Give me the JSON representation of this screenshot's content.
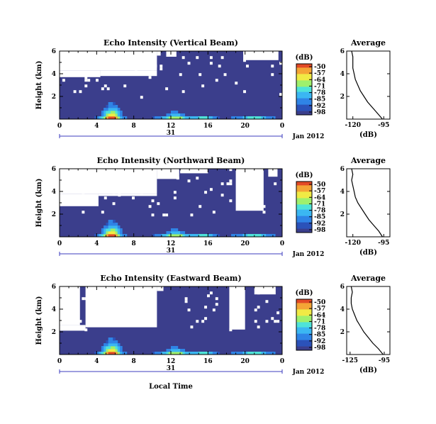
{
  "colors": {
    "background": "#3b3e8c",
    "gap": "#ffffff",
    "colorbar": [
      "#3b3e8c",
      "#2b52b9",
      "#2f84e6",
      "#3bb7f2",
      "#4fe3d9",
      "#9ff06d",
      "#f0ea45",
      "#f4a536",
      "#e24a26"
    ]
  },
  "colorbar": {
    "unit": "(dB)",
    "ticks": [
      "-50",
      "-57",
      "-64",
      "-71",
      "-78",
      "-85",
      "-92",
      "-98"
    ]
  },
  "xaxis": {
    "ticks": [
      "0",
      "4",
      "8",
      "12",
      "16",
      "20",
      "0"
    ],
    "day_label": "31",
    "month_label": "Jan 2012",
    "xlabel": "Local Time",
    "range": [
      0,
      24
    ]
  },
  "chart_data": [
    {
      "type": "heatmap",
      "title": "Echo Intensity (Vertical Beam)",
      "ylabel": "Height (km)",
      "yticks": [
        "6",
        "4",
        "2"
      ],
      "ylim": [
        0,
        6
      ],
      "profile": {
        "title": "Average",
        "xlabel": "(dB)",
        "xticks": [
          "-120",
          "-95"
        ],
        "yticks": [
          "6",
          "4",
          "2"
        ],
        "height_km": [
          0.0,
          0.5,
          1.0,
          1.5,
          2.0,
          2.5,
          3.0,
          3.5,
          4.0,
          4.5,
          5.0,
          5.5,
          6.0
        ],
        "value_db": [
          -96,
          -100,
          -104,
          -108,
          -111,
          -114,
          -116,
          -118,
          -119,
          -120,
          -120,
          -120,
          -121
        ]
      }
    },
    {
      "type": "heatmap",
      "title": "Echo Intensity (Northward Beam)",
      "ylabel": "Height (km)",
      "yticks": [
        "6",
        "4",
        "2"
      ],
      "ylim": [
        0,
        6
      ],
      "profile": {
        "title": "Average",
        "xlabel": "(dB)",
        "xticks": [
          "-120",
          "-95"
        ],
        "yticks": [
          "6",
          "4",
          "2"
        ],
        "height_km": [
          0.0,
          0.5,
          1.0,
          1.5,
          2.0,
          2.5,
          3.0,
          3.5,
          4.0,
          4.5,
          5.0,
          5.5,
          6.0
        ],
        "value_db": [
          -96,
          -99,
          -103,
          -107,
          -110,
          -113,
          -116,
          -118,
          -119,
          -120,
          -121,
          -120,
          -121
        ]
      }
    },
    {
      "type": "heatmap",
      "title": "Echo Intensity (Eastward Beam)",
      "ylabel": "Height (km)",
      "yticks": [
        "6",
        "4",
        "2"
      ],
      "ylim": [
        0,
        6
      ],
      "profile": {
        "title": "Average",
        "xlabel": "(dB)",
        "xticks": [
          "-125",
          "-95"
        ],
        "yticks": [
          "6",
          "4",
          "2"
        ],
        "height_km": [
          0.0,
          0.5,
          1.0,
          1.5,
          2.0,
          2.5,
          3.0,
          3.5,
          4.0,
          4.5,
          5.0,
          5.5,
          6.0
        ],
        "value_db": [
          -96,
          -100,
          -105,
          -109,
          -113,
          -116,
          -119,
          -121,
          -123,
          -124,
          -124,
          -123,
          -124
        ]
      }
    }
  ]
}
